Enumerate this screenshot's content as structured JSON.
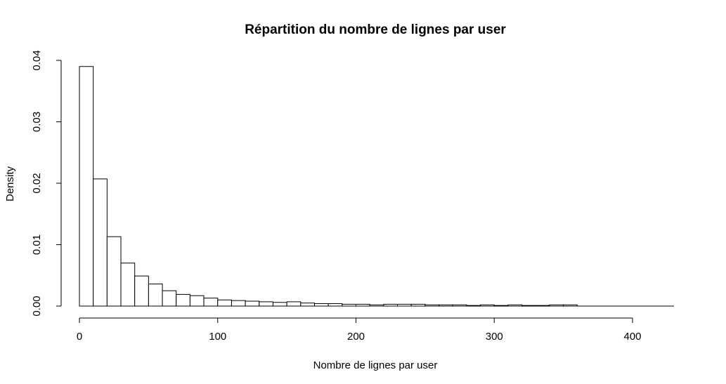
{
  "chart_data": {
    "type": "bar",
    "title": "Répartition du nombre de lignes par user",
    "xlabel": "Nombre de lignes par user",
    "ylabel": "Density",
    "bin_width": 10,
    "bin_start": 0,
    "values": [
      0.039,
      0.0207,
      0.0113,
      0.007,
      0.0049,
      0.0036,
      0.0025,
      0.0019,
      0.0017,
      0.0013,
      0.001,
      0.0009,
      0.0008,
      0.0007,
      0.0006,
      0.0007,
      0.0005,
      0.0004,
      0.0004,
      0.0003,
      0.0003,
      0.0002,
      0.0003,
      0.0003,
      0.0003,
      0.0002,
      0.0002,
      0.0002,
      0.0001,
      0.0002,
      0.0001,
      0.0002,
      0.0001,
      0.0001,
      0.0002,
      0.0002,
      0,
      0,
      0,
      0,
      0,
      0,
      0
    ],
    "xlim": [
      0,
      430
    ],
    "ylim": [
      0,
      0.04
    ],
    "xticks": [
      0,
      100,
      200,
      300,
      400
    ],
    "yticks": [
      0.0,
      0.01,
      0.02,
      0.03,
      0.04
    ],
    "xtick_labels": [
      "0",
      "100",
      "200",
      "300",
      "400"
    ],
    "ytick_labels": [
      "0.00",
      "0.01",
      "0.02",
      "0.03",
      "0.04"
    ],
    "grid": false,
    "legend": "none",
    "bar_fill": "#ffffff",
    "bar_stroke": "#000000"
  }
}
